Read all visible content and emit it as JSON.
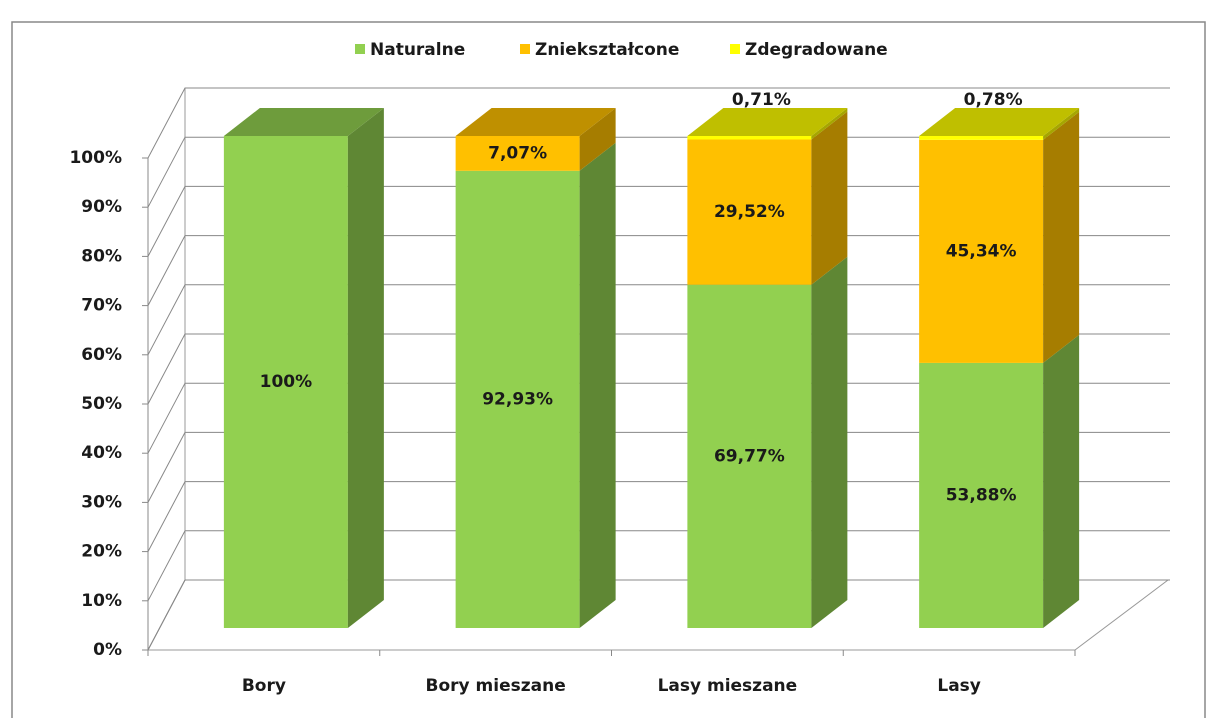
{
  "chart_data": {
    "type": "bar3d_stacked",
    "categories": [
      "Bory",
      "Bory mieszane",
      "Lasy mieszane",
      "Lasy"
    ],
    "series": [
      {
        "name": "Naturalne",
        "color": "#92d050",
        "values": [
          100,
          92.93,
          69.77,
          53.88
        ],
        "value_labels": [
          "100%",
          "92,93%",
          "69,77%",
          "53,88%"
        ]
      },
      {
        "name": "Zniekształcone",
        "color": "#ffc000",
        "values": [
          0,
          7.07,
          29.52,
          45.34
        ],
        "value_labels": [
          null,
          "7,07%",
          "29,52%",
          "45,34%"
        ]
      },
      {
        "name": "Zdegradowane",
        "color": "#ffff00",
        "values": [
          0,
          0,
          0.71,
          0.78
        ],
        "value_labels": [
          null,
          null,
          "0,71%",
          "0,78%"
        ]
      }
    ],
    "ylim": [
      0,
      100
    ],
    "yticks": [
      {
        "value": 0,
        "label": "0%"
      },
      {
        "value": 10,
        "label": "10%"
      },
      {
        "value": 20,
        "label": "20%"
      },
      {
        "value": 30,
        "label": "30%"
      },
      {
        "value": 40,
        "label": "40%"
      },
      {
        "value": 50,
        "label": "50%"
      },
      {
        "value": 60,
        "label": "60%"
      },
      {
        "value": 70,
        "label": "70%"
      },
      {
        "value": 80,
        "label": "80%"
      },
      {
        "value": 90,
        "label": "90%"
      },
      {
        "value": 100,
        "label": "100%"
      }
    ],
    "grid": true,
    "legend": "top"
  }
}
